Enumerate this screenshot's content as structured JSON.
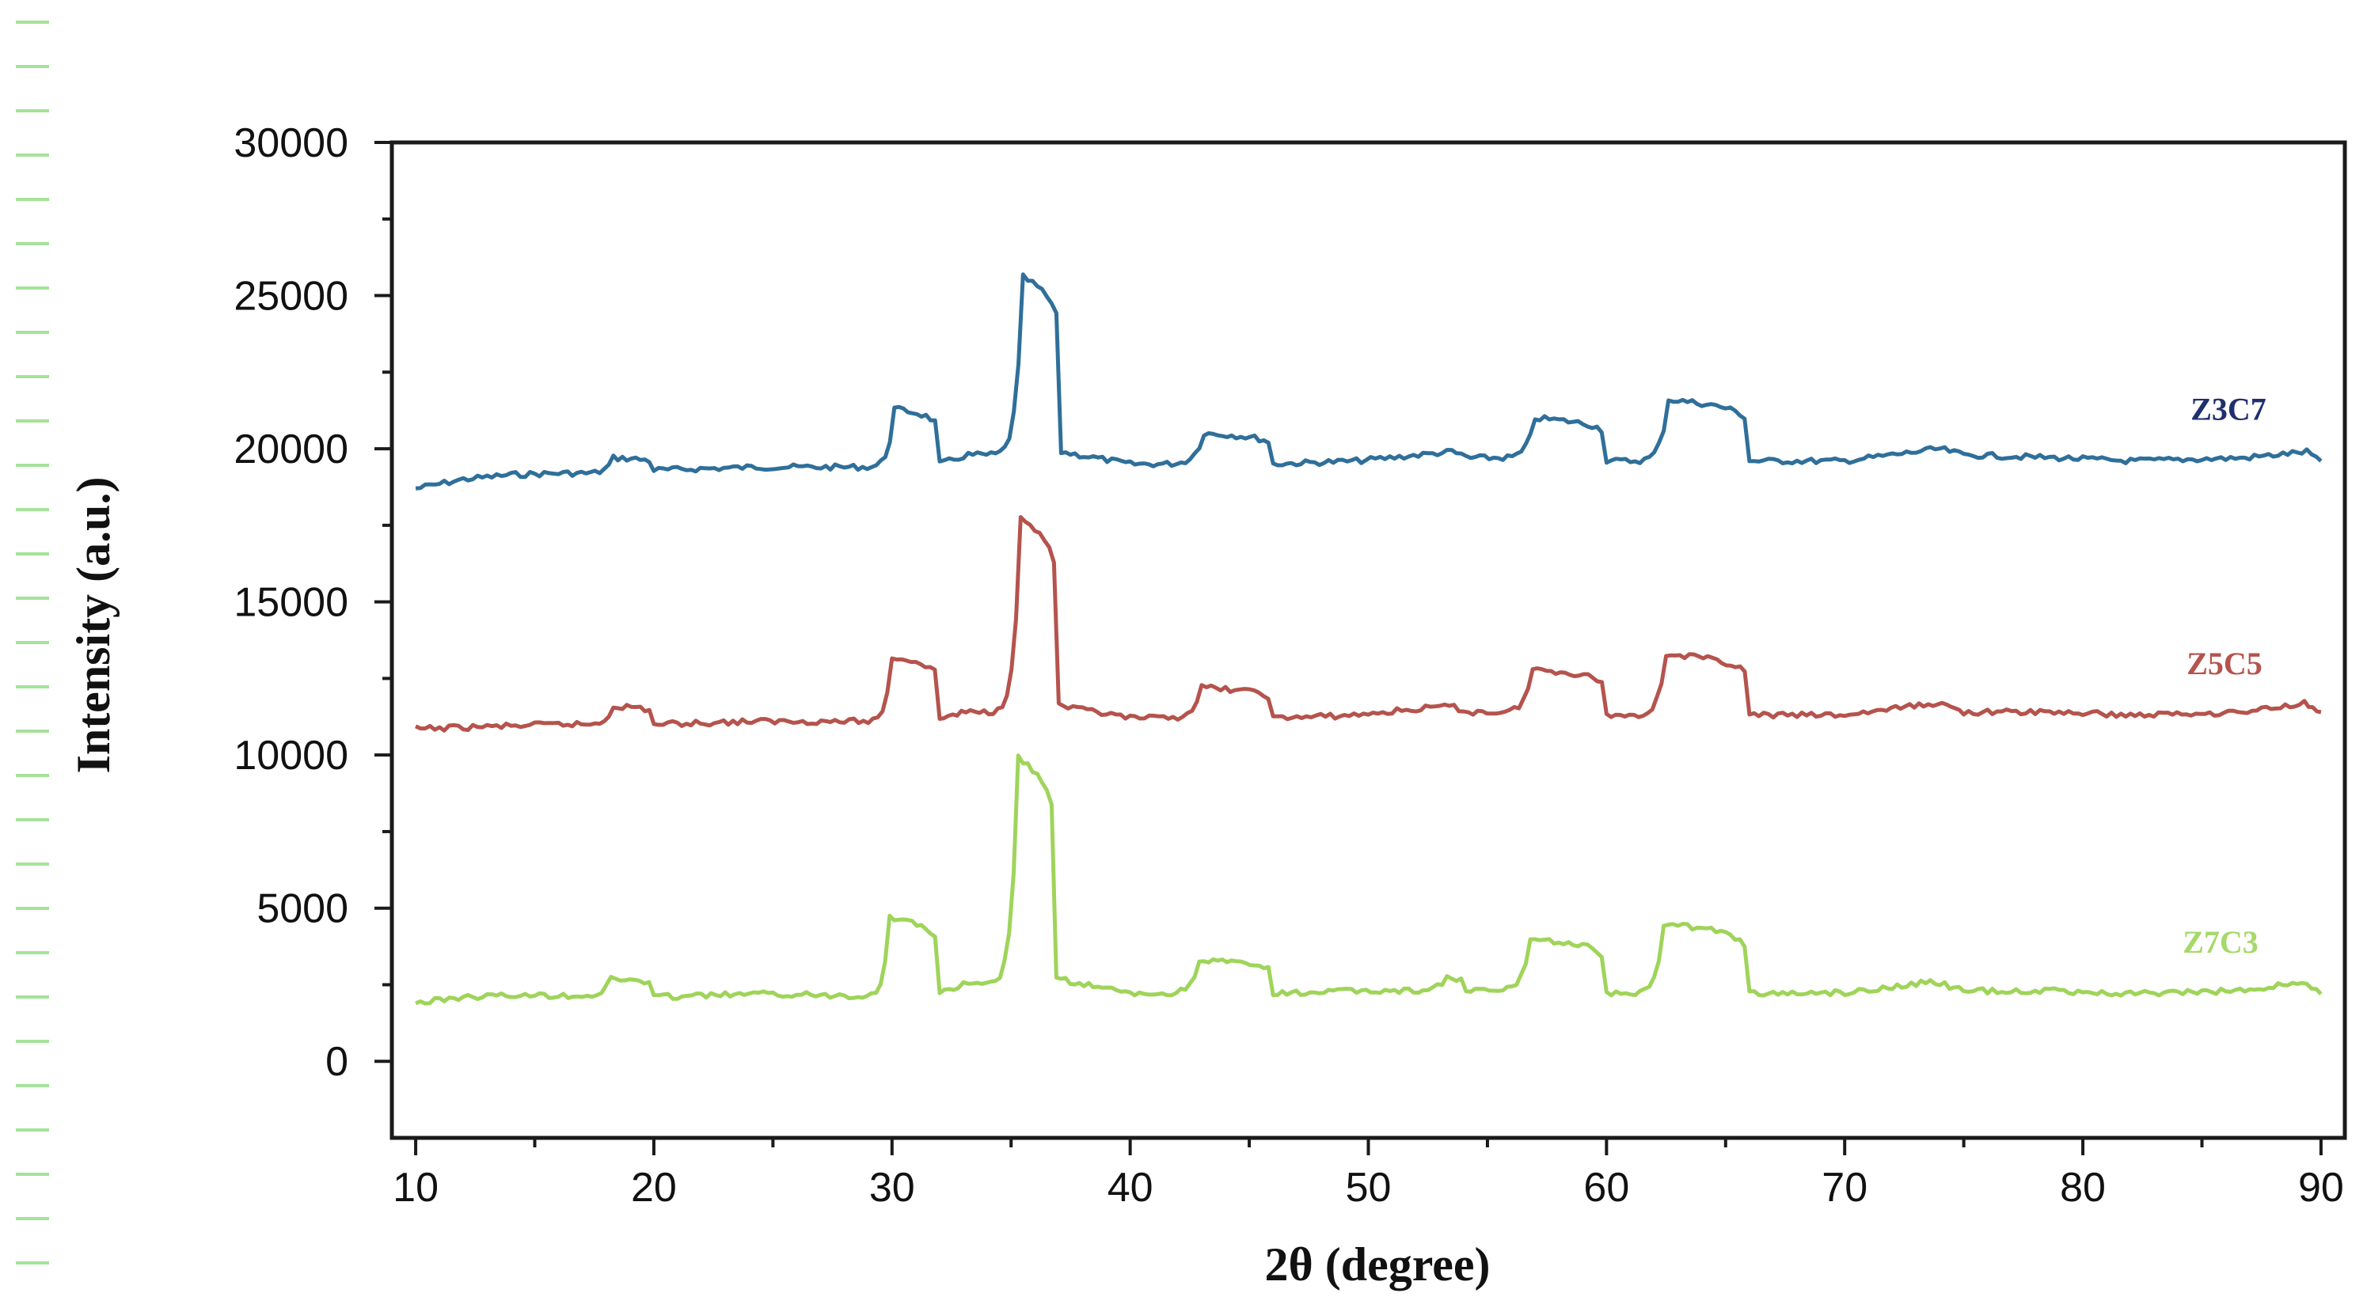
{
  "chart_data": {
    "type": "line",
    "xlabel": "2θ (degree)",
    "ylabel": "Intensity (a.u.)",
    "xlim": [
      9,
      91
    ],
    "ylim": [
      -2500,
      30000
    ],
    "x_ticks": [
      10,
      20,
      30,
      40,
      50,
      60,
      70,
      80,
      90
    ],
    "y_ticks": [
      0,
      5000,
      10000,
      15000,
      20000,
      25000,
      30000
    ],
    "grid": false,
    "legend": "inline labels at right end of each curve",
    "peaks_2theta": [
      18.3,
      30.1,
      33.2,
      35.5,
      37.1,
      43.1,
      53.5,
      57.0,
      62.6,
      74.0,
      89.4
    ],
    "series": [
      {
        "name": "Z3C7",
        "color": "#2f6f9a",
        "label_color": "#1f2f6f",
        "x": [
          10,
          12,
          14,
          16,
          18.3,
          20,
          24.3,
          28,
          30.1,
          32,
          33.2,
          35.5,
          37.1,
          40,
          43.1,
          46,
          49.5,
          53.5,
          54.3,
          57.0,
          60,
          62.6,
          66,
          70,
          74.0,
          75,
          79,
          82,
          86.8,
          89.4,
          90
        ],
        "y": [
          18700,
          19000,
          19150,
          19200,
          19700,
          19300,
          19400,
          19400,
          21300,
          19500,
          19800,
          25600,
          19900,
          19500,
          20500,
          19500,
          19600,
          19900,
          19700,
          21000,
          19600,
          21600,
          19600,
          19600,
          20000,
          19800,
          19700,
          19600,
          19700,
          19900,
          19600
        ]
      },
      {
        "name": "Z5C5",
        "color": "#b5534d",
        "label_color": "#b5534d",
        "x": [
          10,
          12,
          14,
          16,
          18.3,
          20,
          24.3,
          28,
          30.0,
          32,
          33.1,
          35.4,
          37.0,
          40,
          43.0,
          46,
          49.4,
          53.4,
          54.2,
          56.9,
          60,
          62.5,
          66,
          70,
          73.9,
          75,
          79,
          82,
          86.7,
          89.3,
          90
        ],
        "y": [
          10850,
          10900,
          10950,
          11000,
          11600,
          11000,
          11100,
          11100,
          13200,
          11200,
          11400,
          17700,
          11600,
          11200,
          12200,
          11200,
          11300,
          11600,
          11400,
          12800,
          11300,
          13300,
          11300,
          11300,
          11700,
          11400,
          11400,
          11300,
          11400,
          11700,
          11400
        ]
      },
      {
        "name": "Z7C3",
        "color": "#9fd45a",
        "label_color": "#a6d86a",
        "x": [
          10,
          12,
          14,
          16,
          18.2,
          20,
          24.2,
          28,
          29.9,
          32,
          33.0,
          35.3,
          36.9,
          40,
          42.9,
          46,
          49.3,
          53.3,
          54.1,
          56.8,
          60,
          62.4,
          66,
          70,
          73.8,
          75,
          79,
          82,
          86.6,
          89.2,
          90
        ],
        "y": [
          1900,
          2100,
          2150,
          2150,
          2700,
          2100,
          2200,
          2150,
          4700,
          2200,
          2500,
          9900,
          2700,
          2200,
          3300,
          2200,
          2300,
          2700,
          2300,
          4000,
          2200,
          4500,
          2200,
          2250,
          2600,
          2300,
          2300,
          2200,
          2300,
          2600,
          2200
        ]
      }
    ]
  }
}
